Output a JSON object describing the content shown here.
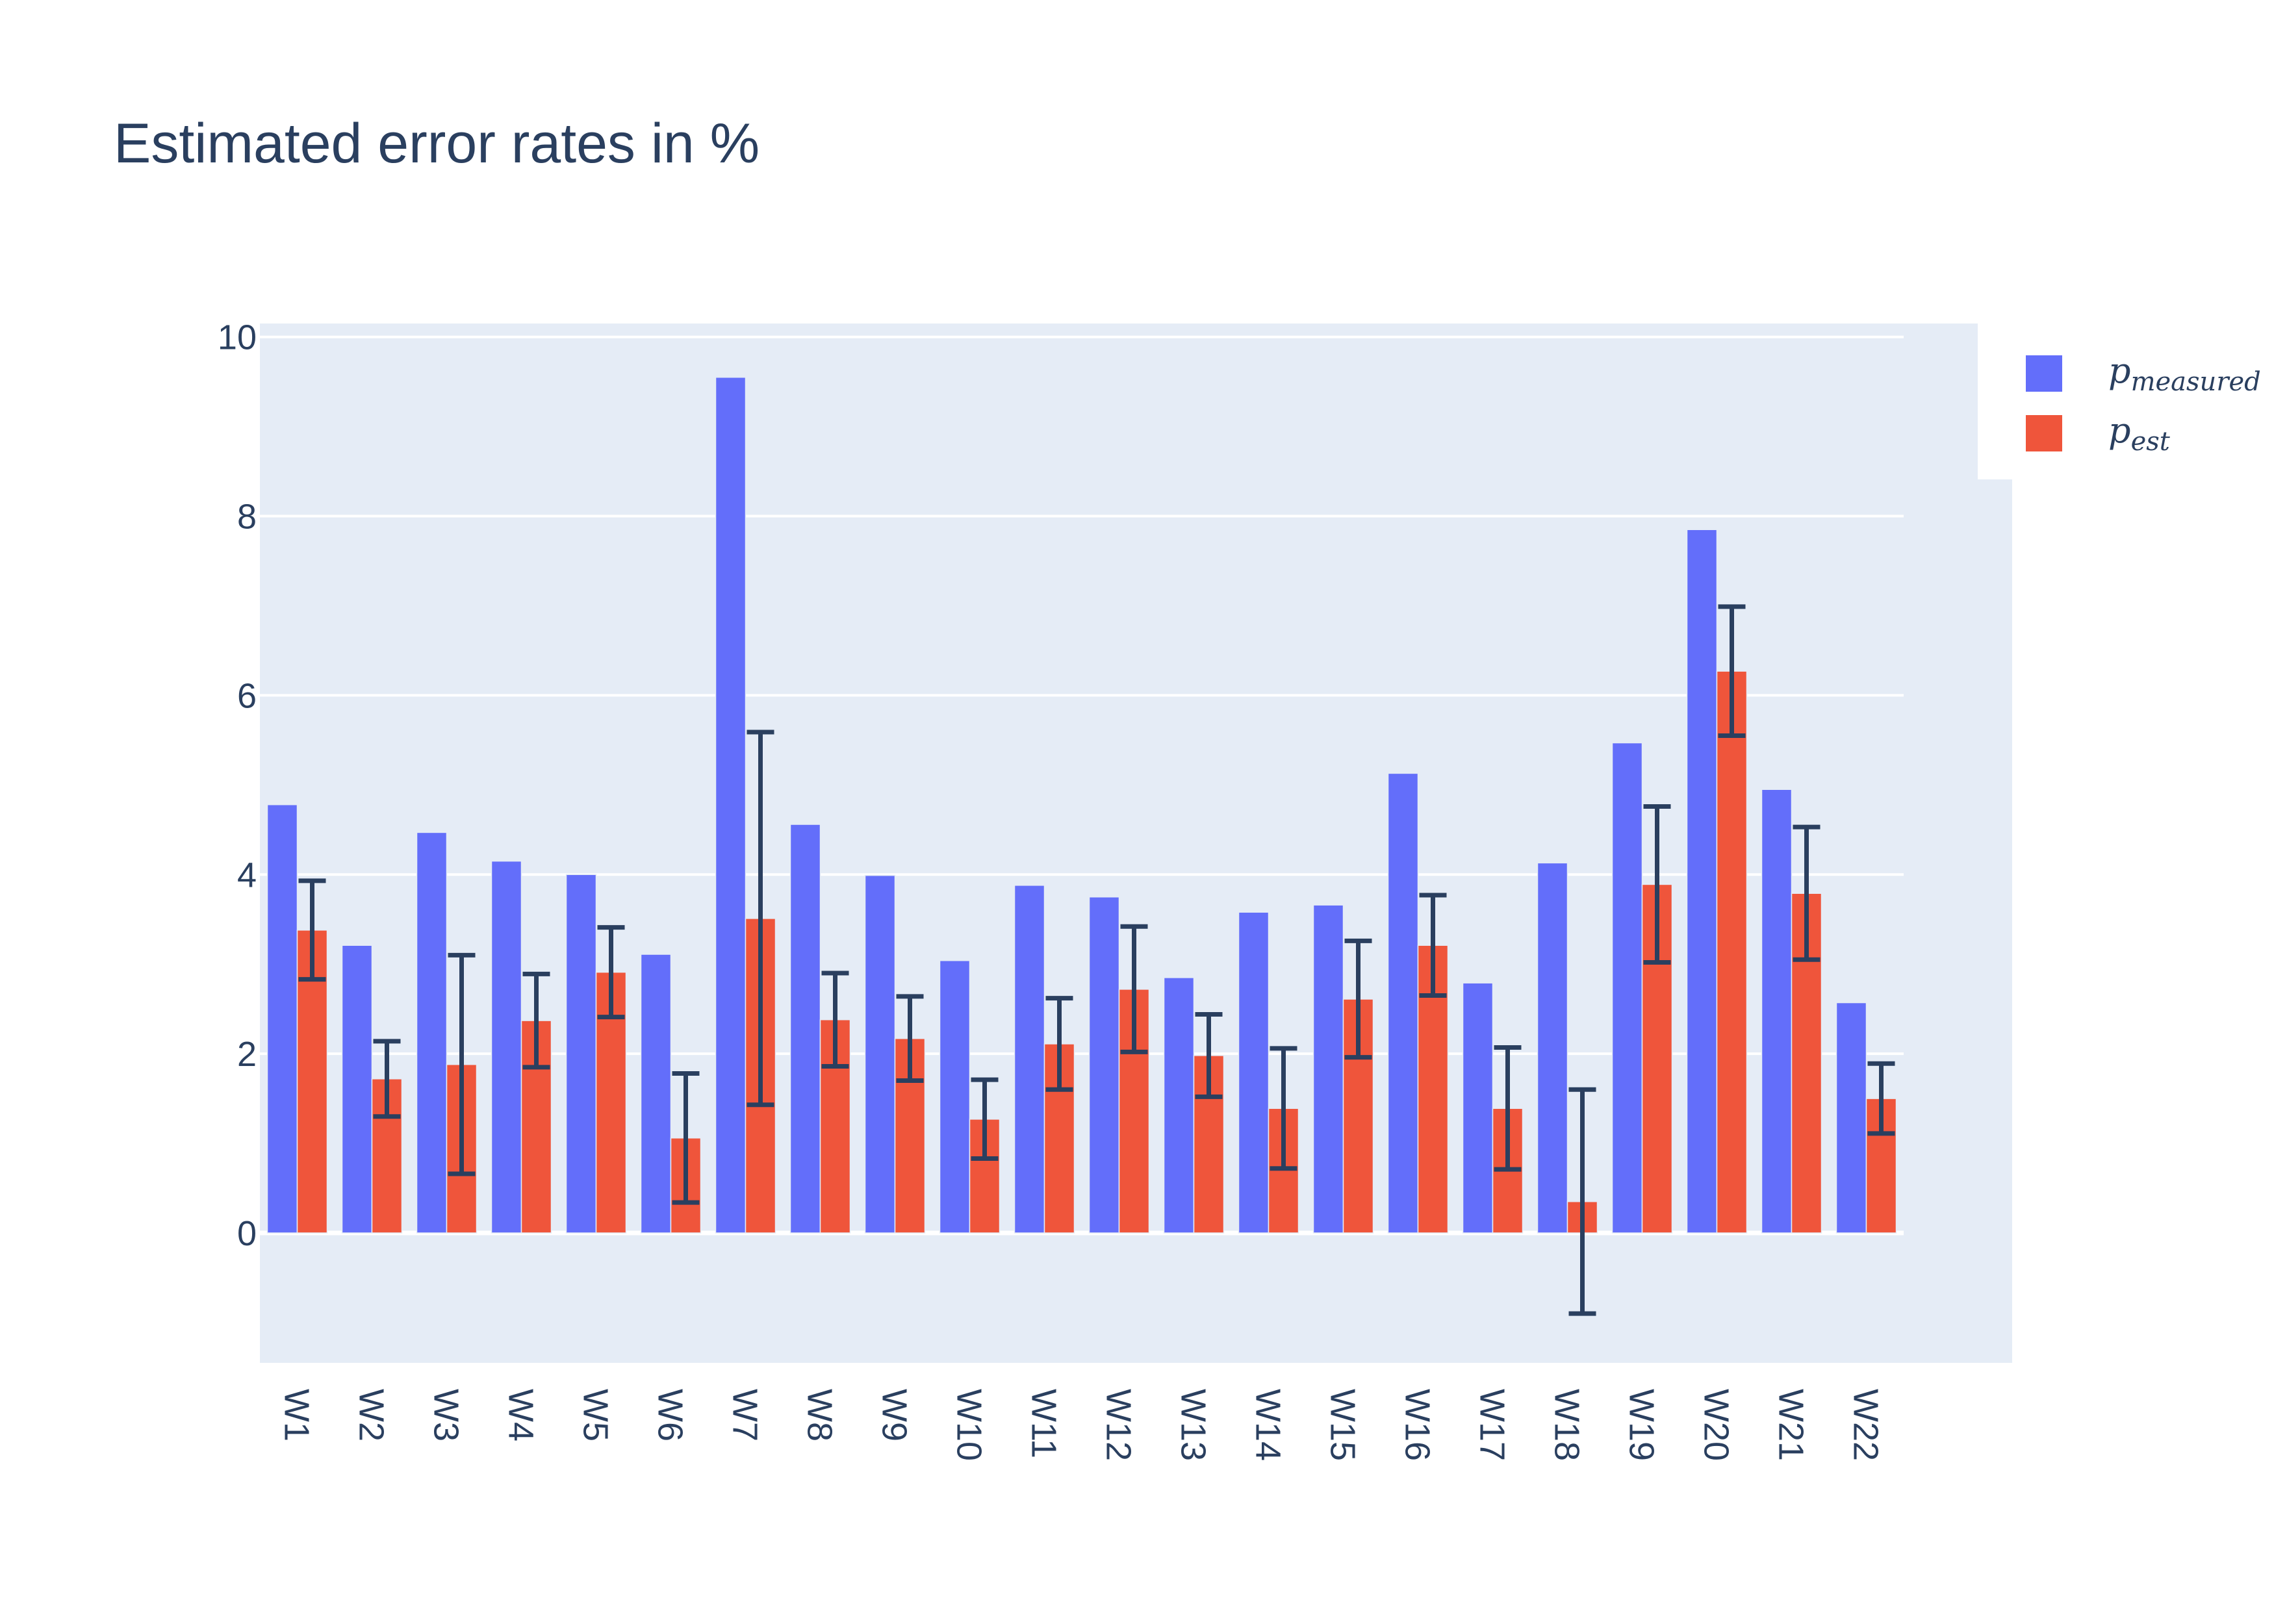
{
  "chart_data": {
    "type": "bar",
    "title": "Estimated error rates in %",
    "xlabel": "",
    "ylabel": "",
    "categories": [
      "W1",
      "W2",
      "W3",
      "W4",
      "W5",
      "W6",
      "W7",
      "W8",
      "W9",
      "W10",
      "W11",
      "W12",
      "W13",
      "W14",
      "W15",
      "W16",
      "W17",
      "W18",
      "W19",
      "W20",
      "W21",
      "W22"
    ],
    "ylim": [
      -1.45,
      10.15
    ],
    "yticks": [
      0,
      2,
      4,
      6,
      8,
      10
    ],
    "grid": true,
    "legend_position": "top-right",
    "series": [
      {
        "name_base": "p",
        "name_sub": "measured",
        "color": "#636efa",
        "values": [
          4.78,
          3.21,
          4.47,
          4.15,
          4.0,
          3.11,
          9.55,
          4.56,
          3.99,
          3.04,
          3.88,
          3.75,
          2.85,
          3.58,
          3.66,
          5.13,
          2.79,
          4.13,
          5.47,
          7.85,
          4.95,
          2.57
        ]
      },
      {
        "name_base": "p",
        "name_sub": "est",
        "color": "#ef553b",
        "values": [
          3.38,
          1.72,
          1.88,
          2.37,
          2.91,
          1.06,
          3.51,
          2.38,
          2.17,
          1.27,
          2.11,
          2.72,
          1.98,
          1.39,
          2.61,
          3.21,
          1.39,
          0.35,
          3.89,
          6.27,
          3.79,
          1.5
        ],
        "error": [
          0.55,
          0.42,
          1.22,
          0.52,
          0.5,
          0.72,
          2.08,
          0.52,
          0.47,
          0.44,
          0.51,
          0.7,
          0.46,
          0.67,
          0.65,
          0.56,
          0.68,
          1.25,
          0.87,
          0.72,
          0.74,
          0.39
        ]
      }
    ]
  }
}
